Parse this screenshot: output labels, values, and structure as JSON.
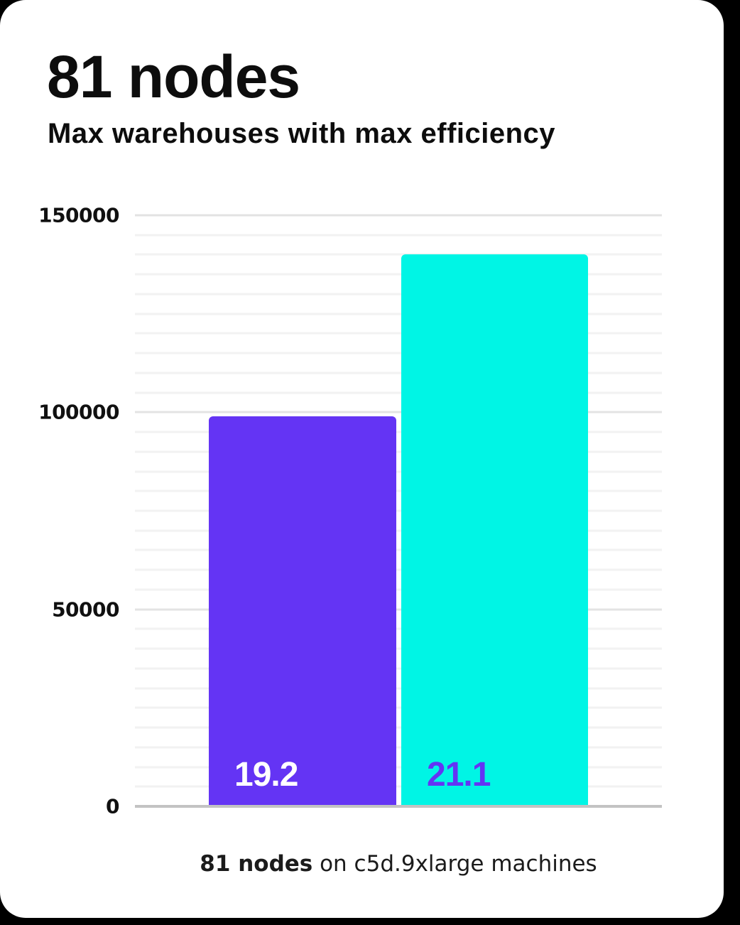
{
  "header": {
    "title": "81 nodes",
    "subtitle": "Max warehouses with max efficiency"
  },
  "chart_data": {
    "type": "bar",
    "title": "81 nodes",
    "subtitle": "Max warehouses with max efficiency",
    "categories": [
      "19.2",
      "21.1"
    ],
    "values": [
      99000,
      140000
    ],
    "bar_value_labels": [
      "19.2",
      "21.1"
    ],
    "ylim": [
      0,
      150000
    ],
    "yticks": [
      0,
      50000,
      100000,
      150000
    ],
    "minor_gridline_step": 5000,
    "grid": "horizontal",
    "legend": "none",
    "xlabel": "",
    "ylabel": "",
    "bar_colors": [
      "#6434f4",
      "#00f5e5"
    ],
    "bar_label_colors": [
      "#ffffff",
      "#6434f4"
    ],
    "caption": "81 nodes on c5d.9xlarge machines"
  },
  "caption": {
    "bold": "81 nodes",
    "rest": " on c5d.9xlarge machines"
  },
  "colors": {
    "page_background": "#000000",
    "card_background": "#ffffff",
    "bar_purple": "#6434f4",
    "bar_cyan": "#00f5e5",
    "minor_gridline": "#f2f2f2",
    "major_gridline": "#e3e3e3",
    "axis_line": "#c3c3c3",
    "text_primary": "#0d0d0d"
  }
}
